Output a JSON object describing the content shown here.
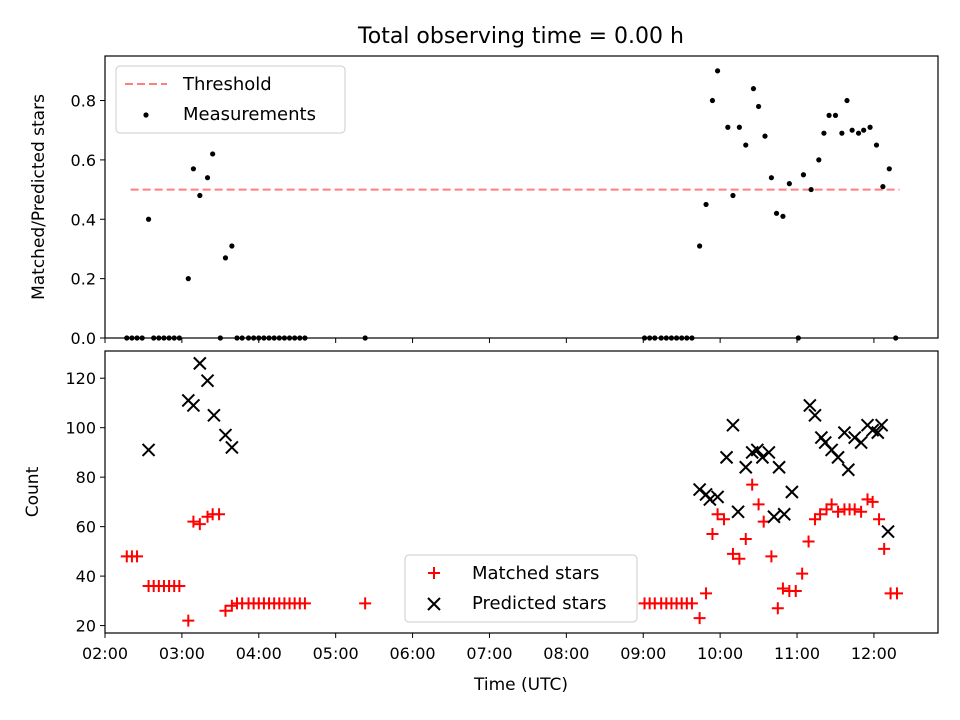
{
  "chart_data": [
    {
      "type": "scatter",
      "title": "Total observing time = 0.00 h",
      "xlabel": "",
      "ylabel": "Matched/Predicted stars",
      "xlim": [
        "02:00",
        "12:50"
      ],
      "ylim": [
        0,
        0.95
      ],
      "y_ticks": [
        0.0,
        0.2,
        0.4,
        0.6,
        0.8
      ],
      "y_tick_labels": [
        "0.0",
        "0.2",
        "0.4",
        "0.6",
        "0.8"
      ],
      "legend": {
        "placement": "upper left",
        "entries": [
          "Threshold",
          "Measurements"
        ]
      },
      "threshold": {
        "name": "Threshold",
        "value": 0.5,
        "x_range": [
          "02:20",
          "12:20"
        ],
        "color": "#ff7f7f"
      },
      "series": [
        {
          "name": "Measurements",
          "color": "#000000",
          "points": [
            [
              "02:17",
              0.0
            ],
            [
              "02:21",
              0.0
            ],
            [
              "02:25",
              0.0
            ],
            [
              "02:29",
              0.0
            ],
            [
              "02:34",
              0.4
            ],
            [
              "02:38",
              0.0
            ],
            [
              "02:42",
              0.0
            ],
            [
              "02:46",
              0.0
            ],
            [
              "02:50",
              0.0
            ],
            [
              "02:54",
              0.0
            ],
            [
              "02:58",
              0.0
            ],
            [
              "03:05",
              0.2
            ],
            [
              "03:09",
              0.57
            ],
            [
              "03:14",
              0.48
            ],
            [
              "03:20",
              0.54
            ],
            [
              "03:24",
              0.62
            ],
            [
              "03:30",
              0.0
            ],
            [
              "03:34",
              0.27
            ],
            [
              "03:39",
              0.31
            ],
            [
              "03:43",
              0.0
            ],
            [
              "03:47",
              0.0
            ],
            [
              "03:52",
              0.0
            ],
            [
              "03:56",
              0.0
            ],
            [
              "04:00",
              0.0
            ],
            [
              "04:04",
              0.0
            ],
            [
              "04:08",
              0.0
            ],
            [
              "04:12",
              0.0
            ],
            [
              "04:16",
              0.0
            ],
            [
              "04:20",
              0.0
            ],
            [
              "04:24",
              0.0
            ],
            [
              "04:28",
              0.0
            ],
            [
              "04:32",
              0.0
            ],
            [
              "04:36",
              0.0
            ],
            [
              "05:23",
              0.0
            ],
            [
              "09:01",
              0.0
            ],
            [
              "09:05",
              0.0
            ],
            [
              "09:09",
              0.0
            ],
            [
              "09:14",
              0.0
            ],
            [
              "09:18",
              0.0
            ],
            [
              "09:22",
              0.0
            ],
            [
              "09:26",
              0.0
            ],
            [
              "09:30",
              0.0
            ],
            [
              "09:34",
              0.0
            ],
            [
              "09:38",
              0.0
            ],
            [
              "09:44",
              0.31
            ],
            [
              "09:49",
              0.45
            ],
            [
              "09:54",
              0.8
            ],
            [
              "09:58",
              0.9
            ],
            [
              "10:06",
              0.71
            ],
            [
              "10:10",
              0.48
            ],
            [
              "10:15",
              0.71
            ],
            [
              "10:20",
              0.65
            ],
            [
              "10:26",
              0.84
            ],
            [
              "10:30",
              0.78
            ],
            [
              "10:35",
              0.68
            ],
            [
              "10:40",
              0.54
            ],
            [
              "10:44",
              0.42
            ],
            [
              "10:49",
              0.41
            ],
            [
              "10:54",
              0.52
            ],
            [
              "11:01",
              0.0
            ],
            [
              "11:05",
              0.55
            ],
            [
              "11:11",
              0.5
            ],
            [
              "11:17",
              0.6
            ],
            [
              "11:21",
              0.69
            ],
            [
              "11:25",
              0.75
            ],
            [
              "11:30",
              0.75
            ],
            [
              "11:35",
              0.69
            ],
            [
              "11:39",
              0.8
            ],
            [
              "11:43",
              0.7
            ],
            [
              "11:48",
              0.69
            ],
            [
              "11:52",
              0.7
            ],
            [
              "11:57",
              0.71
            ],
            [
              "12:02",
              0.65
            ],
            [
              "12:07",
              0.51
            ],
            [
              "12:12",
              0.57
            ],
            [
              "12:17",
              0.0
            ]
          ]
        }
      ]
    },
    {
      "type": "scatter",
      "title": "",
      "xlabel": "Time (UTC)",
      "ylabel": "Count",
      "xlim": [
        "02:00",
        "12:50"
      ],
      "ylim": [
        17,
        131
      ],
      "y_ticks": [
        20,
        40,
        60,
        80,
        100,
        120
      ],
      "y_tick_labels": [
        "20",
        "40",
        "60",
        "80",
        "100",
        "120"
      ],
      "x_ticks": [
        "02:00",
        "03:00",
        "04:00",
        "05:00",
        "06:00",
        "07:00",
        "08:00",
        "09:00",
        "10:00",
        "11:00",
        "12:00"
      ],
      "legend": {
        "placement": "lower center",
        "entries": [
          "Matched stars",
          "Predicted stars"
        ]
      },
      "series": [
        {
          "name": "Matched stars",
          "marker": "plus",
          "color": "#ff0000",
          "points": [
            [
              "02:17",
              48
            ],
            [
              "02:21",
              48
            ],
            [
              "02:25",
              48
            ],
            [
              "02:34",
              36
            ],
            [
              "02:38",
              36
            ],
            [
              "02:42",
              36
            ],
            [
              "02:46",
              36
            ],
            [
              "02:50",
              36
            ],
            [
              "02:54",
              36
            ],
            [
              "02:58",
              36
            ],
            [
              "03:05",
              22
            ],
            [
              "03:09",
              62
            ],
            [
              "03:14",
              61
            ],
            [
              "03:20",
              64
            ],
            [
              "03:24",
              65
            ],
            [
              "03:29",
              65
            ],
            [
              "03:34",
              26
            ],
            [
              "03:39",
              28
            ],
            [
              "03:43",
              29
            ],
            [
              "03:47",
              29
            ],
            [
              "03:52",
              29
            ],
            [
              "03:56",
              29
            ],
            [
              "04:00",
              29
            ],
            [
              "04:04",
              29
            ],
            [
              "04:08",
              29
            ],
            [
              "04:12",
              29
            ],
            [
              "04:16",
              29
            ],
            [
              "04:20",
              29
            ],
            [
              "04:24",
              29
            ],
            [
              "04:28",
              29
            ],
            [
              "04:32",
              29
            ],
            [
              "04:36",
              29
            ],
            [
              "05:23",
              29
            ],
            [
              "09:01",
              29
            ],
            [
              "09:05",
              29
            ],
            [
              "09:09",
              29
            ],
            [
              "09:14",
              29
            ],
            [
              "09:18",
              29
            ],
            [
              "09:22",
              29
            ],
            [
              "09:26",
              29
            ],
            [
              "09:30",
              29
            ],
            [
              "09:34",
              29
            ],
            [
              "09:38",
              29
            ],
            [
              "09:44",
              23
            ],
            [
              "09:49",
              33
            ],
            [
              "09:54",
              57
            ],
            [
              "09:58",
              65
            ],
            [
              "10:03",
              63
            ],
            [
              "10:10",
              49
            ],
            [
              "10:15",
              47
            ],
            [
              "10:20",
              55
            ],
            [
              "10:25",
              77
            ],
            [
              "10:30",
              69
            ],
            [
              "10:34",
              62
            ],
            [
              "10:40",
              48
            ],
            [
              "10:45",
              27
            ],
            [
              "10:49",
              35
            ],
            [
              "10:54",
              34
            ],
            [
              "10:59",
              34
            ],
            [
              "11:04",
              41
            ],
            [
              "11:09",
              54
            ],
            [
              "11:14",
              63
            ],
            [
              "11:18",
              65
            ],
            [
              "11:23",
              67
            ],
            [
              "11:27",
              69
            ],
            [
              "11:32",
              66
            ],
            [
              "11:37",
              67
            ],
            [
              "11:41",
              67
            ],
            [
              "11:45",
              67
            ],
            [
              "11:50",
              66
            ],
            [
              "11:55",
              71
            ],
            [
              "11:59",
              70
            ],
            [
              "12:04",
              63
            ],
            [
              "12:08",
              51
            ],
            [
              "12:13",
              33
            ],
            [
              "12:18",
              33
            ]
          ]
        },
        {
          "name": "Predicted stars",
          "marker": "x",
          "color": "#000000",
          "points": [
            [
              "02:34",
              91
            ],
            [
              "03:05",
              111
            ],
            [
              "03:09",
              109
            ],
            [
              "03:14",
              126
            ],
            [
              "03:20",
              119
            ],
            [
              "03:25",
              105
            ],
            [
              "03:34",
              97
            ],
            [
              "03:39",
              92
            ],
            [
              "09:44",
              75
            ],
            [
              "09:49",
              73
            ],
            [
              "09:52",
              71
            ],
            [
              "09:58",
              72
            ],
            [
              "10:05",
              88
            ],
            [
              "10:10",
              101
            ],
            [
              "10:14",
              66
            ],
            [
              "10:20",
              84
            ],
            [
              "10:25",
              90
            ],
            [
              "10:29",
              91
            ],
            [
              "10:33",
              88
            ],
            [
              "10:38",
              90
            ],
            [
              "10:42",
              64
            ],
            [
              "10:46",
              84
            ],
            [
              "10:50",
              65
            ],
            [
              "10:56",
              74
            ],
            [
              "11:10",
              109
            ],
            [
              "11:14",
              105
            ],
            [
              "11:19",
              96
            ],
            [
              "11:22",
              94
            ],
            [
              "11:27",
              91
            ],
            [
              "11:32",
              88
            ],
            [
              "11:37",
              98
            ],
            [
              "11:40",
              83
            ],
            [
              "11:45",
              96
            ],
            [
              "11:50",
              94
            ],
            [
              "11:55",
              101
            ],
            [
              "11:59",
              99
            ],
            [
              "12:03",
              98
            ],
            [
              "12:06",
              101
            ],
            [
              "12:11",
              58
            ]
          ]
        }
      ]
    }
  ]
}
